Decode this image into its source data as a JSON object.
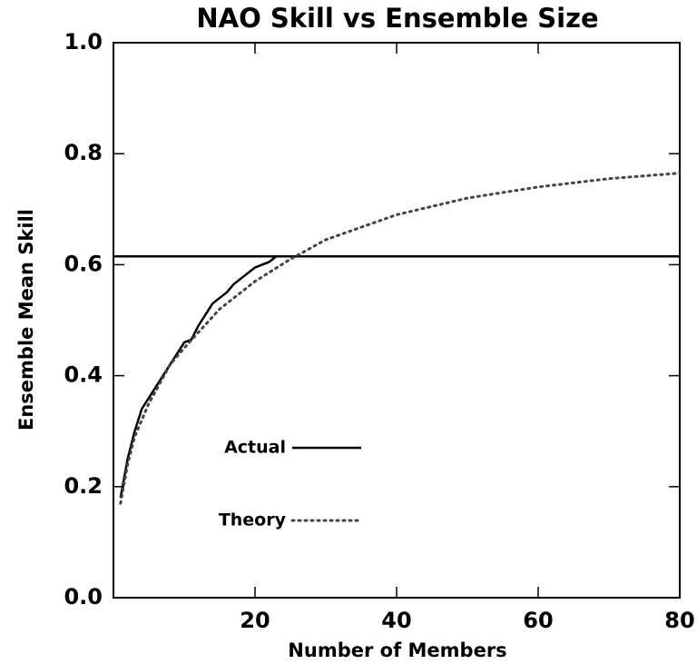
{
  "chart_data": {
    "type": "line",
    "title": "NAO Skill vs Ensemble Size",
    "xlabel": "Number of Members",
    "ylabel": "Ensemble Mean Skill",
    "xlim": [
      0,
      80
    ],
    "ylim": [
      0,
      1
    ],
    "xticks": [
      20,
      40,
      60,
      80
    ],
    "yticks": [
      {
        "value": 0,
        "label": "0.0"
      },
      {
        "value": 0.2,
        "label": "0.2"
      },
      {
        "value": 0.4,
        "label": "0.4"
      },
      {
        "value": 0.6,
        "label": "0.6"
      },
      {
        "value": 0.8,
        "label": "0.8"
      },
      {
        "value": 1,
        "label": "1.0"
      }
    ],
    "hline": 0.615,
    "legend": "lower left",
    "series": [
      {
        "name": "Actual",
        "color": "#000000",
        "style": "solid",
        "x": [
          1,
          2,
          3,
          4,
          5,
          6,
          7,
          8,
          9,
          10,
          11,
          12,
          13,
          14,
          15,
          16,
          17,
          18,
          19,
          20,
          21,
          22,
          23,
          24
        ],
        "values": [
          0.18,
          0.25,
          0.3,
          0.34,
          0.36,
          0.38,
          0.4,
          0.42,
          0.44,
          0.46,
          0.465,
          0.49,
          0.51,
          0.53,
          0.54,
          0.55,
          0.565,
          0.575,
          0.585,
          0.595,
          0.6,
          0.605,
          0.615,
          0.615
        ]
      },
      {
        "name": "Theory",
        "color": "#444444",
        "style": "dotted",
        "x": [
          1,
          2,
          3,
          5,
          8,
          10,
          15,
          20,
          25,
          30,
          40,
          50,
          60,
          70,
          80
        ],
        "values": [
          0.17,
          0.24,
          0.29,
          0.35,
          0.42,
          0.45,
          0.52,
          0.57,
          0.61,
          0.645,
          0.69,
          0.72,
          0.74,
          0.755,
          0.765
        ]
      }
    ]
  }
}
